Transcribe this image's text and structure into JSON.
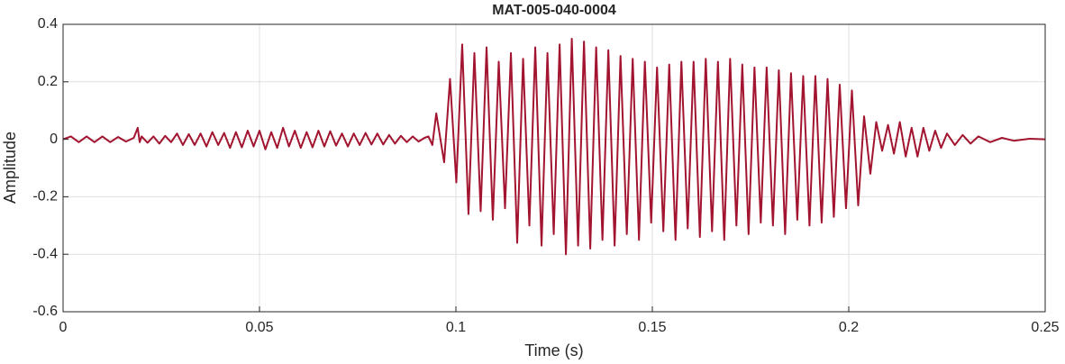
{
  "chart_data": {
    "type": "line",
    "title": "MAT-005-040-0004",
    "xlabel": "Time (s)",
    "ylabel": "Amplitude",
    "color": "#a2142f",
    "grid": true,
    "xlim": [
      0,
      0.25
    ],
    "xticks": [
      0,
      0.05,
      0.1,
      0.15,
      0.2,
      0.25
    ],
    "ylim": [
      -0.6,
      0.4
    ],
    "yticks": [
      -0.6,
      -0.4,
      -0.2,
      0,
      0.2,
      0.4
    ],
    "x": [
      0,
      0.002,
      0.004,
      0.006,
      0.008,
      0.01,
      0.012,
      0.014,
      0.016,
      0.018,
      0.019,
      0.0195,
      0.02,
      0.0215,
      0.023,
      0.0245,
      0.026,
      0.0275,
      0.029,
      0.0305,
      0.032,
      0.0335,
      0.035,
      0.0365,
      0.038,
      0.0395,
      0.041,
      0.0425,
      0.044,
      0.0455,
      0.047,
      0.0485,
      0.05,
      0.0515,
      0.053,
      0.0545,
      0.056,
      0.0575,
      0.059,
      0.0605,
      0.062,
      0.0635,
      0.065,
      0.0665,
      0.068,
      0.0695,
      0.071,
      0.0725,
      0.074,
      0.0755,
      0.077,
      0.0785,
      0.08,
      0.0815,
      0.083,
      0.0845,
      0.086,
      0.0875,
      0.089,
      0.0905,
      0.092,
      0.093,
      0.094,
      0.095,
      0.097,
      0.0985,
      0.1001,
      0.1016,
      0.1032,
      0.1047,
      0.1063,
      0.1078,
      0.1094,
      0.1109,
      0.1125,
      0.114,
      0.1156,
      0.1171,
      0.1187,
      0.1202,
      0.1218,
      0.1233,
      0.1249,
      0.1264,
      0.128,
      0.1295,
      0.1311,
      0.1326,
      0.1342,
      0.1357,
      0.1373,
      0.1388,
      0.1404,
      0.1419,
      0.1435,
      0.145,
      0.1466,
      0.1481,
      0.1497,
      0.1512,
      0.1528,
      0.1543,
      0.1559,
      0.1574,
      0.159,
      0.1605,
      0.1621,
      0.1636,
      0.1652,
      0.1667,
      0.1683,
      0.1698,
      0.1714,
      0.1729,
      0.1745,
      0.176,
      0.1776,
      0.1791,
      0.1807,
      0.1822,
      0.1838,
      0.1853,
      0.1869,
      0.1884,
      0.19,
      0.1915,
      0.1931,
      0.1946,
      0.1962,
      0.1977,
      0.1993,
      0.2008,
      0.2024,
      0.2039,
      0.2055,
      0.207,
      0.2085,
      0.21,
      0.2115,
      0.213,
      0.2145,
      0.216,
      0.2175,
      0.219,
      0.2205,
      0.222,
      0.2235,
      0.225,
      0.227,
      0.229,
      0.231,
      0.233,
      0.236,
      0.239,
      0.242,
      0.246,
      0.25
    ],
    "values": [
      0,
      0.01,
      -0.01,
      0.01,
      -0.01,
      0.01,
      -0.01,
      0.008,
      -0.008,
      0.005,
      0.04,
      -0.01,
      0.01,
      -0.012,
      0.01,
      -0.015,
      0.012,
      -0.01,
      0.02,
      -0.02,
      0.018,
      -0.02,
      0.02,
      -0.025,
      0.025,
      -0.02,
      0.022,
      -0.03,
      0.025,
      -0.028,
      0.03,
      -0.025,
      0.03,
      -0.035,
      0.025,
      -0.03,
      0.04,
      -0.025,
      0.03,
      -0.03,
      0.025,
      -0.028,
      0.03,
      -0.025,
      0.028,
      -0.022,
      0.02,
      -0.025,
      0.02,
      -0.02,
      0.022,
      -0.018,
      0.02,
      -0.018,
      0.015,
      -0.015,
      0.012,
      -0.01,
      0.01,
      -0.008,
      0.005,
      0.01,
      -0.02,
      0.09,
      -0.08,
      0.21,
      -0.15,
      0.33,
      -0.26,
      0.3,
      -0.25,
      0.32,
      -0.28,
      0.27,
      -0.24,
      0.3,
      -0.36,
      0.28,
      -0.3,
      0.32,
      -0.37,
      0.3,
      -0.33,
      0.33,
      -0.4,
      0.35,
      -0.37,
      0.34,
      -0.38,
      0.32,
      -0.35,
      0.31,
      -0.37,
      0.29,
      -0.33,
      0.28,
      -0.35,
      0.27,
      -0.29,
      0.25,
      -0.32,
      0.26,
      -0.35,
      0.27,
      -0.31,
      0.27,
      -0.34,
      0.28,
      -0.32,
      0.27,
      -0.35,
      0.28,
      -0.3,
      0.26,
      -0.33,
      0.25,
      -0.29,
      0.25,
      -0.3,
      0.24,
      -0.33,
      0.23,
      -0.28,
      0.22,
      -0.3,
      0.22,
      -0.29,
      0.21,
      -0.27,
      0.19,
      -0.24,
      0.17,
      -0.23,
      0.08,
      -0.12,
      0.06,
      -0.04,
      0.05,
      -0.05,
      0.06,
      -0.06,
      0.04,
      -0.06,
      0.04,
      -0.04,
      0.03,
      -0.03,
      0.02,
      -0.02,
      0.015,
      -0.015,
      0.01,
      -0.01,
      0.005,
      -0.005,
      0.002,
      0
    ]
  }
}
